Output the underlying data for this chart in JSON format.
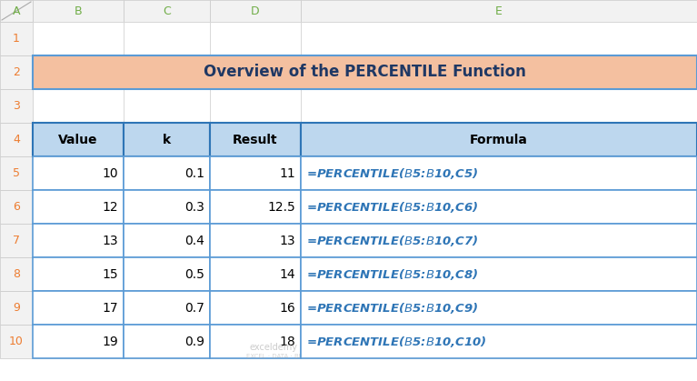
{
  "title": "Overview of the PERCENTILE Function",
  "title_bg": "#F4C0A0",
  "title_color": "#1F3864",
  "col_headers": [
    "Value",
    "k",
    "Result",
    "Formula"
  ],
  "header_bg": "#BDD7EE",
  "header_border": "#2E75B6",
  "rows": [
    [
      "10",
      "0.1",
      "11",
      "=PERCENTILE($B$5:$B$10,C5)"
    ],
    [
      "12",
      "0.3",
      "12.5",
      "=PERCENTILE($B$5:$B$10,C6)"
    ],
    [
      "13",
      "0.4",
      "13",
      "=PERCENTILE($B$5:$B$10,C7)"
    ],
    [
      "15",
      "0.5",
      "14",
      "=PERCENTILE($B$5:$B$10,C8)"
    ],
    [
      "17",
      "0.7",
      "16",
      "=PERCENTILE($B$5:$B$10,C9)"
    ],
    [
      "19",
      "0.9",
      "18",
      "=PERCENTILE($B$5:$B$10,C10)"
    ]
  ],
  "row_bg": "#FFFFFF",
  "row_border": "#5B9BD5",
  "formula_color": "#2E75B6",
  "data_color": "#000000",
  "grid_bg": "#FFFFFF",
  "header_label_color": "#70AD47",
  "row_label_color": "#ED7D31",
  "col_header_bg": "#F2F2F2",
  "row_header_bg": "#F2F2F2",
  "fig_bg": "#FFFFFF",
  "grid_line_color": "#D0D0D0",
  "col_header_border": "#C8C8C8",
  "corner_bg": "#E8E8E8",
  "title_border_color": "#5B9BD5",
  "watermark_color": "#AAAAAA",
  "row_data_border": "#808080"
}
